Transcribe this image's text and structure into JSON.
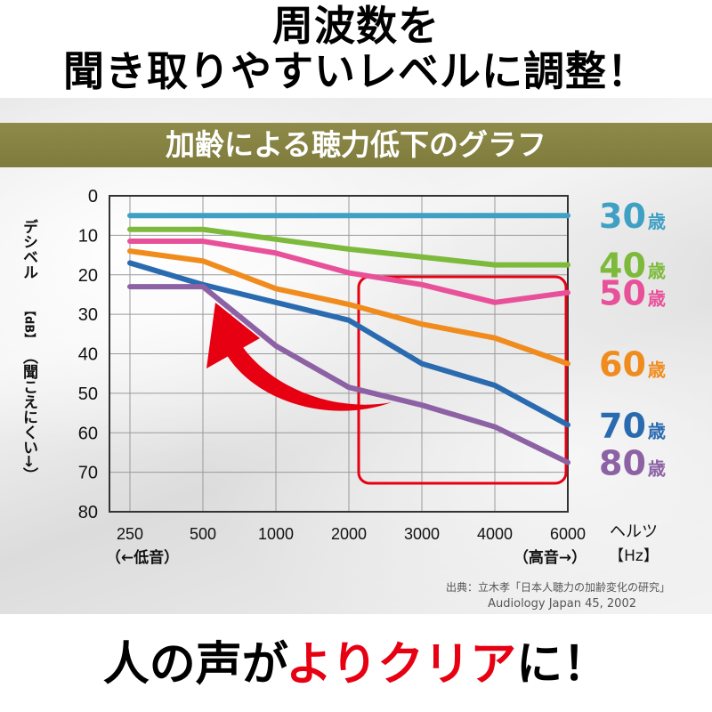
{
  "headline": {
    "line1": "周波数を",
    "line2": "聞き取りやすいレベルに調整！"
  },
  "footer": {
    "part1": "人の声が",
    "part2": "よりクリア",
    "part3": "に！"
  },
  "source": {
    "line1": "出典：立木孝「日本人聴力の加齢変化の研究」",
    "line2": "Audiology Japan 45, 2002"
  },
  "y_axis": {
    "label": "デシベル",
    "unit": "【dB】",
    "note": "（聞こえにくい→）"
  },
  "x_axis": {
    "unit_label": "ヘルツ",
    "unit": "【Hz】",
    "low_note": "（←低音）",
    "high_note": "（高音→）"
  },
  "chart_data": {
    "type": "line",
    "title": "加齢による聴力低下のグラフ",
    "categories": [
      "250",
      "500",
      "1000",
      "2000",
      "3000",
      "4000",
      "6000"
    ],
    "y_ticks": [
      "0",
      "10",
      "20",
      "30",
      "40",
      "50",
      "60",
      "70",
      "80"
    ],
    "ylim": [
      0,
      80
    ],
    "y_inverted": true,
    "grid": true,
    "legend": "right",
    "series": [
      {
        "name": "30歳",
        "color": "#3fa0c4",
        "values": [
          5,
          5,
          5,
          5,
          5,
          5,
          5
        ]
      },
      {
        "name": "40歳",
        "color": "#7dba3c",
        "values": [
          8.5,
          8.5,
          11,
          13.5,
          15.5,
          17.5,
          17.5
        ]
      },
      {
        "name": "50歳",
        "color": "#e8519a",
        "values": [
          11.5,
          11.5,
          14.5,
          19.5,
          22.5,
          27,
          24.5
        ]
      },
      {
        "name": "60歳",
        "color": "#f08c1e",
        "values": [
          14,
          16.5,
          23.5,
          27.5,
          32.5,
          36,
          42.5
        ]
      },
      {
        "name": "70歳",
        "color": "#2a6bb0",
        "values": [
          17,
          22.5,
          27,
          31.5,
          42.5,
          48,
          58
        ]
      },
      {
        "name": "80歳",
        "color": "#8c62a5",
        "values": [
          23,
          23,
          38,
          48.5,
          53,
          58.5,
          67.5
        ]
      }
    ],
    "highlight_color": "#e60012",
    "arrow_color": "#e60012"
  }
}
